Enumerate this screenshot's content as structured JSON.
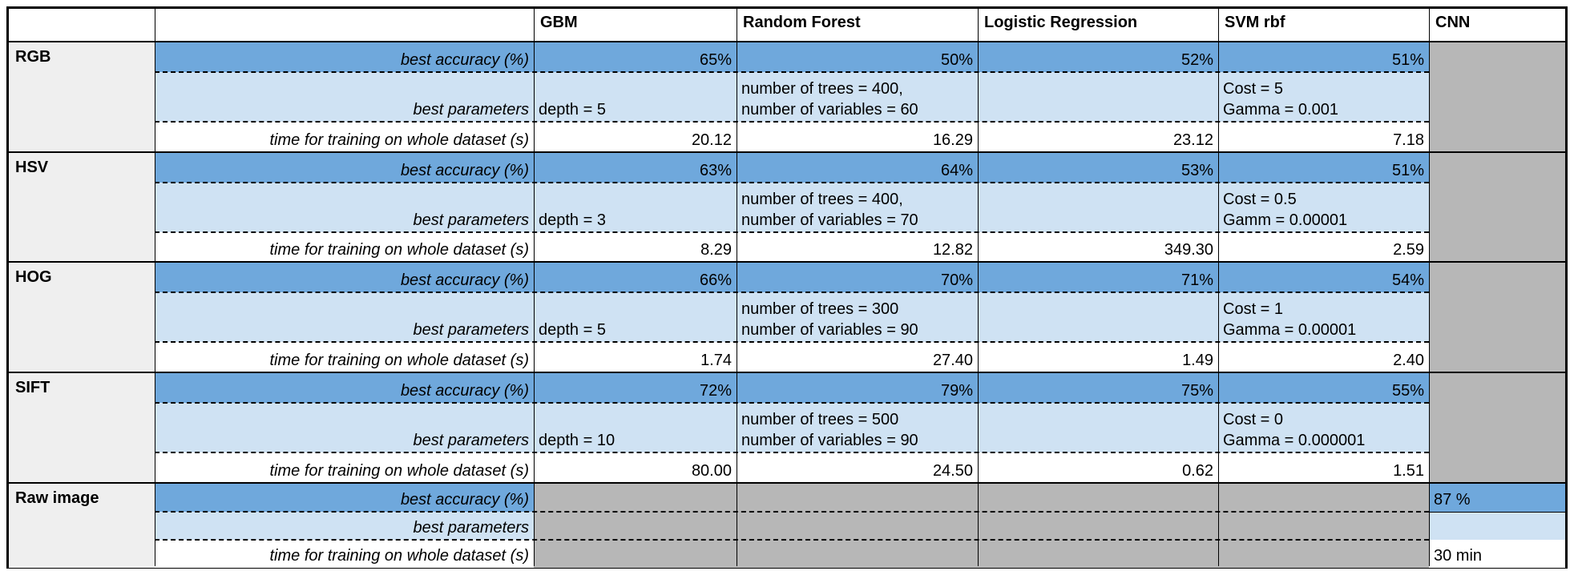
{
  "header": [
    "",
    "",
    "GBM",
    "Random Forest",
    "Logistic Regression",
    "SVM rbf",
    "CNN"
  ],
  "metrics": {
    "accuracy": "best accuracy (%)",
    "parameters": "best parameters",
    "time": "time for training on whole dataset (s)"
  },
  "groups": [
    {
      "name": "RGB",
      "accuracy": [
        "65%",
        "50%",
        "52%",
        "51%"
      ],
      "parameters": [
        [
          "depth = 5"
        ],
        [
          "number of trees = 400,",
          "number of variables = 60"
        ],
        [],
        [
          "Cost = 5",
          "Gamma = 0.001"
        ]
      ],
      "time": [
        "20.12",
        "16.29",
        "23.12",
        "7.18"
      ]
    },
    {
      "name": "HSV",
      "accuracy": [
        "63%",
        "64%",
        "53%",
        "51%"
      ],
      "parameters": [
        [
          "depth = 3"
        ],
        [
          "number of trees = 400,",
          "number of variables = 70"
        ],
        [],
        [
          "Cost = 0.5",
          "Gamm = 0.00001"
        ]
      ],
      "time": [
        "8.29",
        "12.82",
        "349.30",
        "2.59"
      ]
    },
    {
      "name": "HOG",
      "accuracy": [
        "66%",
        "70%",
        "71%",
        "54%"
      ],
      "parameters": [
        [
          "depth = 5"
        ],
        [
          "number of trees = 300",
          "number of variables = 90"
        ],
        [],
        [
          "Cost = 1",
          "Gamma = 0.00001"
        ]
      ],
      "time": [
        "1.74",
        "27.40",
        "1.49",
        "2.40"
      ]
    },
    {
      "name": "SIFT",
      "accuracy": [
        "72%",
        "79%",
        "75%",
        "55%"
      ],
      "parameters": [
        [
          "depth = 10"
        ],
        [
          "number of trees = 500",
          "number of variables = 90"
        ],
        [],
        [
          "Cost = 0",
          "Gamma = 0.000001"
        ]
      ],
      "time": [
        "80.00",
        "24.50",
        "0.62",
        "1.51"
      ]
    }
  ],
  "raw": {
    "name": "Raw image",
    "cnn_accuracy": "87 %",
    "cnn_parameters": "",
    "cnn_time": "30 min"
  },
  "colors": {
    "accuracy_fill": "#6fa8dc",
    "parameters_fill": "#cfe2f3",
    "na_fill": "#b7b7b7",
    "label_fill": "#efefef"
  }
}
